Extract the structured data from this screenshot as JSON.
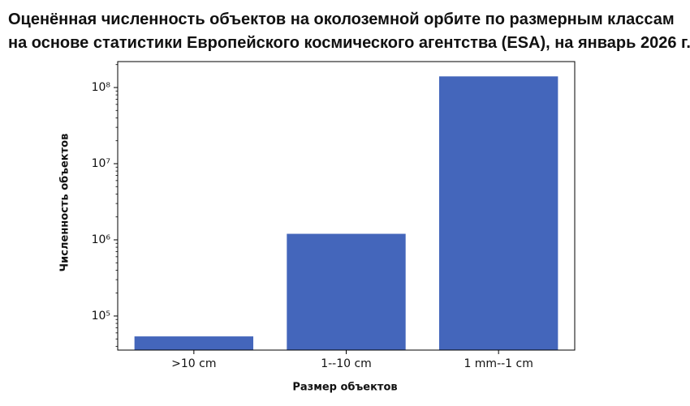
{
  "chart_data": {
    "type": "bar",
    "title": [
      "Оценённая численность объектов на околоземной орбите по размерным классам",
      "на основе статистики Европейского космического агентства (ESA), на январь 2026 г."
    ],
    "xlabel": "Размер объектов",
    "ylabel": "Численность объектов",
    "categories": [
      ">10 cm",
      "1--10 cm",
      "1 mm--1 cm"
    ],
    "values": [
      54000,
      1200000,
      140000000
    ],
    "color": "#4466bb",
    "log_scale": true,
    "ylim": [
      35700,
      219000000
    ],
    "yticks": [
      {
        "value": 100000,
        "label": "10⁵"
      },
      {
        "value": 1000000,
        "label": "10⁶"
      },
      {
        "value": 10000000,
        "label": "10⁷"
      },
      {
        "value": 100000000,
        "label": "10⁸"
      }
    ],
    "grid": false
  }
}
